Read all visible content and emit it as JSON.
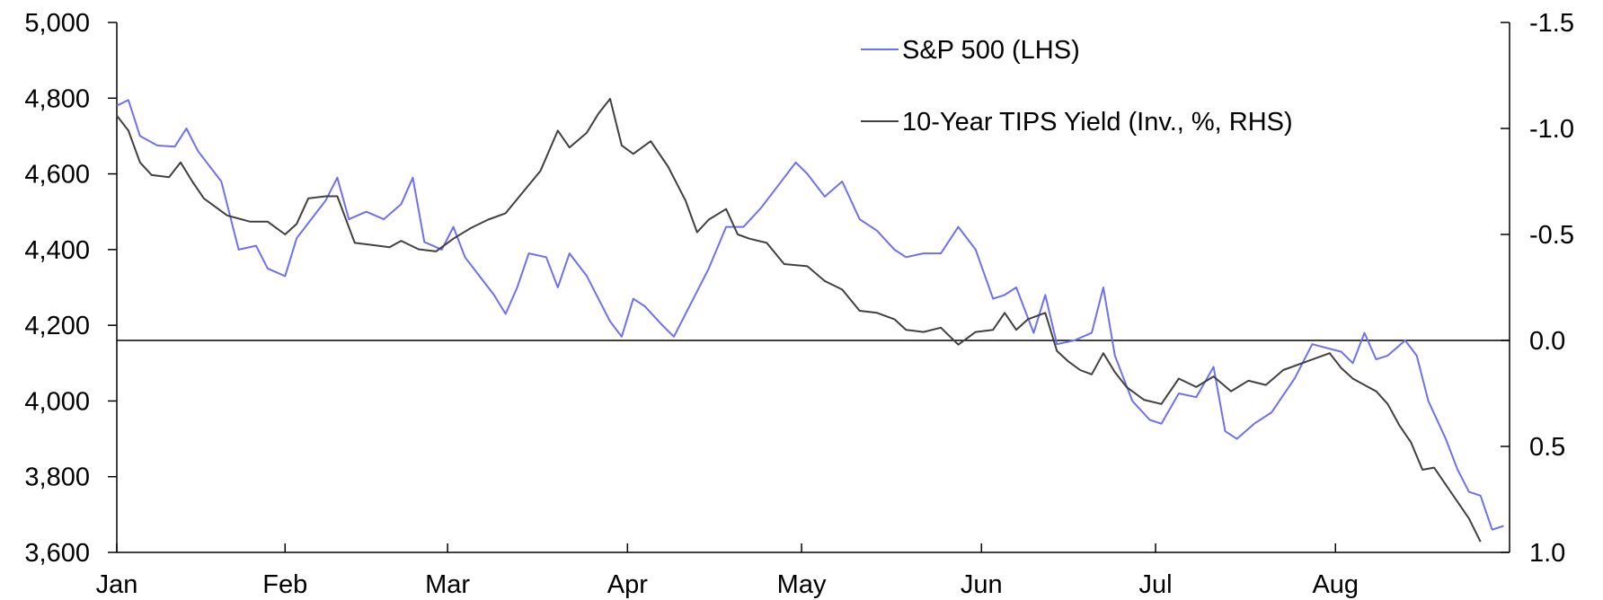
{
  "chart_data": {
    "type": "line",
    "title": "",
    "x_tick_labels": [
      "Jan",
      "Feb",
      "Mar",
      "Apr",
      "May",
      "Jun",
      "Jul",
      "Aug"
    ],
    "x_range": [
      "2022-01-03",
      "2022-08-31"
    ],
    "y_left": {
      "range": [
        3600,
        5000
      ],
      "ticks": [
        "3,600",
        "3,800",
        "4,000",
        "4,200",
        "4,400",
        "4,600",
        "4,800",
        "5,000"
      ]
    },
    "y_right": {
      "range": [
        1.0,
        -1.5
      ],
      "inverted": true,
      "ticks": [
        "1.0",
        "0.5",
        "0.0",
        "-0.5",
        "-1.0",
        "-1.5"
      ]
    },
    "zero_line_right": 0.0,
    "legend": {
      "position": "top-right"
    },
    "series": [
      {
        "name": "S&P 500 (LHS)",
        "axis": "left",
        "color": "#6f6ff2",
        "points": [
          [
            "2022-01-03",
            4780
          ],
          [
            "2022-01-05",
            4795
          ],
          [
            "2022-01-07",
            4700
          ],
          [
            "2022-01-10",
            4675
          ],
          [
            "2022-01-13",
            4672
          ],
          [
            "2022-01-15",
            4720
          ],
          [
            "2022-01-17",
            4660
          ],
          [
            "2022-01-21",
            4580
          ],
          [
            "2022-01-24",
            4400
          ],
          [
            "2022-01-27",
            4410
          ],
          [
            "2022-01-29",
            4350
          ],
          [
            "2022-02-01",
            4330
          ],
          [
            "2022-02-03",
            4430
          ],
          [
            "2022-02-08",
            4530
          ],
          [
            "2022-02-10",
            4590
          ],
          [
            "2022-02-12",
            4480
          ],
          [
            "2022-02-15",
            4500
          ],
          [
            "2022-02-18",
            4480
          ],
          [
            "2022-02-21",
            4520
          ],
          [
            "2022-02-23",
            4590
          ],
          [
            "2022-02-25",
            4420
          ],
          [
            "2022-02-28",
            4400
          ],
          [
            "2022-03-02",
            4460
          ],
          [
            "2022-03-04",
            4380
          ],
          [
            "2022-03-07",
            4320
          ],
          [
            "2022-03-09",
            4280
          ],
          [
            "2022-03-11",
            4230
          ],
          [
            "2022-03-13",
            4300
          ],
          [
            "2022-03-15",
            4390
          ],
          [
            "2022-03-18",
            4380
          ],
          [
            "2022-03-20",
            4300
          ],
          [
            "2022-03-22",
            4390
          ],
          [
            "2022-03-25",
            4330
          ],
          [
            "2022-03-29",
            4210
          ],
          [
            "2022-03-31",
            4170
          ],
          [
            "2022-04-02",
            4270
          ],
          [
            "2022-04-04",
            4250
          ],
          [
            "2022-04-07",
            4200
          ],
          [
            "2022-04-09",
            4170
          ],
          [
            "2022-04-12",
            4260
          ],
          [
            "2022-04-15",
            4350
          ],
          [
            "2022-04-18",
            4460
          ],
          [
            "2022-04-21",
            4460
          ],
          [
            "2022-04-24",
            4510
          ],
          [
            "2022-04-27",
            4570
          ],
          [
            "2022-04-30",
            4630
          ],
          [
            "2022-05-02",
            4600
          ],
          [
            "2022-05-05",
            4540
          ],
          [
            "2022-05-08",
            4580
          ],
          [
            "2022-05-11",
            4480
          ],
          [
            "2022-05-14",
            4450
          ],
          [
            "2022-05-17",
            4400
          ],
          [
            "2022-05-19",
            4380
          ],
          [
            "2022-05-22",
            4390
          ],
          [
            "2022-05-25",
            4390
          ],
          [
            "2022-05-28",
            4460
          ],
          [
            "2022-05-31",
            4400
          ],
          [
            "2022-06-03",
            4270
          ],
          [
            "2022-06-05",
            4280
          ],
          [
            "2022-06-07",
            4300
          ],
          [
            "2022-06-10",
            4180
          ],
          [
            "2022-06-12",
            4280
          ],
          [
            "2022-06-14",
            4150
          ],
          [
            "2022-06-17",
            4160
          ],
          [
            "2022-06-20",
            4180
          ],
          [
            "2022-06-22",
            4300
          ],
          [
            "2022-06-24",
            4120
          ],
          [
            "2022-06-27",
            4000
          ],
          [
            "2022-06-30",
            3950
          ],
          [
            "2022-07-02",
            3940
          ],
          [
            "2022-07-05",
            4020
          ],
          [
            "2022-07-08",
            4010
          ],
          [
            "2022-07-11",
            4090
          ],
          [
            "2022-07-13",
            3920
          ],
          [
            "2022-07-15",
            3900
          ],
          [
            "2022-07-18",
            3940
          ],
          [
            "2022-07-21",
            3970
          ],
          [
            "2022-07-25",
            4060
          ],
          [
            "2022-07-28",
            4150
          ],
          [
            "2022-08-02",
            4130
          ],
          [
            "2022-08-04",
            4100
          ],
          [
            "2022-08-06",
            4180
          ],
          [
            "2022-08-08",
            4110
          ],
          [
            "2022-08-10",
            4120
          ],
          [
            "2022-08-13",
            4160
          ],
          [
            "2022-08-15",
            4120
          ],
          [
            "2022-08-17",
            4000
          ],
          [
            "2022-08-20",
            3900
          ],
          [
            "2022-08-22",
            3820
          ],
          [
            "2022-08-24",
            3760
          ],
          [
            "2022-08-26",
            3750
          ],
          [
            "2022-08-28",
            3660
          ],
          [
            "2022-08-30",
            3670
          ]
        ]
      },
      {
        "name": "10-Year TIPS Yield (Inv., %, RHS)",
        "axis": "right",
        "color": "#404040",
        "points": [
          [
            "2022-01-03",
            -1.06
          ],
          [
            "2022-01-05",
            -0.99
          ],
          [
            "2022-01-07",
            -0.84
          ],
          [
            "2022-01-09",
            -0.78
          ],
          [
            "2022-01-12",
            -0.77
          ],
          [
            "2022-01-14",
            -0.84
          ],
          [
            "2022-01-16",
            -0.75
          ],
          [
            "2022-01-18",
            -0.67
          ],
          [
            "2022-01-22",
            -0.59
          ],
          [
            "2022-01-26",
            -0.56
          ],
          [
            "2022-01-29",
            -0.56
          ],
          [
            "2022-02-01",
            -0.5
          ],
          [
            "2022-02-03",
            -0.55
          ],
          [
            "2022-02-05",
            -0.67
          ],
          [
            "2022-02-08",
            -0.68
          ],
          [
            "2022-02-10",
            -0.68
          ],
          [
            "2022-02-13",
            -0.46
          ],
          [
            "2022-02-16",
            -0.45
          ],
          [
            "2022-02-19",
            -0.44
          ],
          [
            "2022-02-21",
            -0.47
          ],
          [
            "2022-02-24",
            -0.43
          ],
          [
            "2022-02-27",
            -0.42
          ],
          [
            "2022-03-02",
            -0.48
          ],
          [
            "2022-03-05",
            -0.53
          ],
          [
            "2022-03-08",
            -0.57
          ],
          [
            "2022-03-11",
            -0.6
          ],
          [
            "2022-03-14",
            -0.7
          ],
          [
            "2022-03-17",
            -0.8
          ],
          [
            "2022-03-20",
            -0.99
          ],
          [
            "2022-03-22",
            -0.91
          ],
          [
            "2022-03-25",
            -0.98
          ],
          [
            "2022-03-27",
            -1.07
          ],
          [
            "2022-03-29",
            -1.14
          ],
          [
            "2022-03-31",
            -0.92
          ],
          [
            "2022-04-02",
            -0.88
          ],
          [
            "2022-04-05",
            -0.94
          ],
          [
            "2022-04-08",
            -0.82
          ],
          [
            "2022-04-11",
            -0.66
          ],
          [
            "2022-04-13",
            -0.51
          ],
          [
            "2022-04-15",
            -0.57
          ],
          [
            "2022-04-18",
            -0.62
          ],
          [
            "2022-04-20",
            -0.5
          ],
          [
            "2022-04-22",
            -0.48
          ],
          [
            "2022-04-25",
            -0.46
          ],
          [
            "2022-04-28",
            -0.36
          ],
          [
            "2022-05-02",
            -0.35
          ],
          [
            "2022-05-05",
            -0.28
          ],
          [
            "2022-05-08",
            -0.24
          ],
          [
            "2022-05-11",
            -0.14
          ],
          [
            "2022-05-14",
            -0.13
          ],
          [
            "2022-05-17",
            -0.1
          ],
          [
            "2022-05-19",
            -0.05
          ],
          [
            "2022-05-22",
            -0.04
          ],
          [
            "2022-05-25",
            -0.06
          ],
          [
            "2022-05-28",
            0.02
          ],
          [
            "2022-05-31",
            -0.04
          ],
          [
            "2022-06-03",
            -0.05
          ],
          [
            "2022-06-05",
            -0.13
          ],
          [
            "2022-06-07",
            -0.05
          ],
          [
            "2022-06-09",
            -0.1
          ],
          [
            "2022-06-12",
            -0.13
          ],
          [
            "2022-06-14",
            0.05
          ],
          [
            "2022-06-16",
            0.1
          ],
          [
            "2022-06-18",
            0.14
          ],
          [
            "2022-06-20",
            0.16
          ],
          [
            "2022-06-22",
            0.06
          ],
          [
            "2022-06-24",
            0.15
          ],
          [
            "2022-06-26",
            0.22
          ],
          [
            "2022-06-29",
            0.28
          ],
          [
            "2022-07-02",
            0.3
          ],
          [
            "2022-07-05",
            0.18
          ],
          [
            "2022-07-08",
            0.22
          ],
          [
            "2022-07-11",
            0.17
          ],
          [
            "2022-07-14",
            0.24
          ],
          [
            "2022-07-17",
            0.19
          ],
          [
            "2022-07-20",
            0.21
          ],
          [
            "2022-07-23",
            0.14
          ],
          [
            "2022-07-27",
            0.1
          ],
          [
            "2022-07-31",
            0.06
          ],
          [
            "2022-08-02",
            0.13
          ],
          [
            "2022-08-04",
            0.18
          ],
          [
            "2022-08-06",
            0.21
          ],
          [
            "2022-08-08",
            0.24
          ],
          [
            "2022-08-10",
            0.3
          ],
          [
            "2022-08-12",
            0.4
          ],
          [
            "2022-08-14",
            0.48
          ],
          [
            "2022-08-16",
            0.61
          ],
          [
            "2022-08-18",
            0.6
          ],
          [
            "2022-08-21",
            0.72
          ],
          [
            "2022-08-24",
            0.84
          ],
          [
            "2022-08-26",
            0.95
          ]
        ]
      }
    ]
  }
}
